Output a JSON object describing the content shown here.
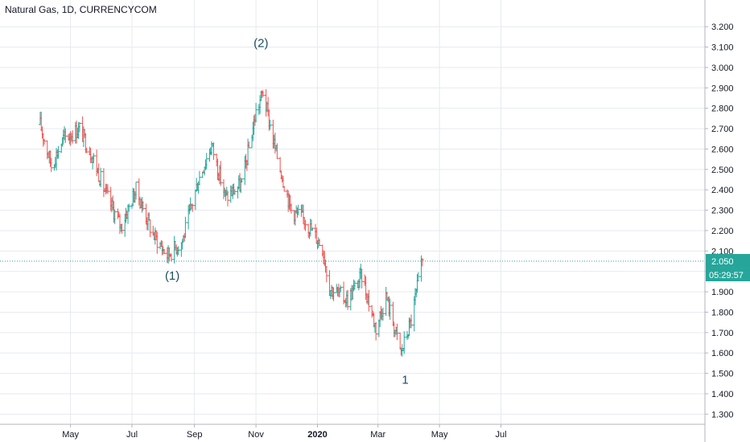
{
  "header": {
    "symbol_title": "Natural Gas, 1D, CURRENCYCOM"
  },
  "colors": {
    "up": "#26a69a",
    "down": "#ef5350",
    "grid": "#e6eaf0",
    "axis_text": "#131722",
    "price_line": "#26a69a",
    "wave_label": "#1e4e5e"
  },
  "chart_data": {
    "type": "ohlc-bar",
    "timeframe": "1D",
    "x_tick_labels": [
      "May",
      "Jul",
      "Sep",
      "Nov",
      "2020",
      "Mar",
      "May",
      "Jul"
    ],
    "y_tick_labels": [
      "1.300",
      "1.400",
      "1.500",
      "1.600",
      "1.700",
      "1.800",
      "1.900",
      "2.000",
      "2.100",
      "2.200",
      "2.300",
      "2.400",
      "2.500",
      "2.600",
      "2.700",
      "2.800",
      "2.900",
      "3.000",
      "3.100",
      "3.200"
    ],
    "ylim": [
      1.25,
      3.26
    ],
    "grid": true,
    "last_price": {
      "value": 2.05,
      "label": "2.050",
      "countdown": "05:29:57"
    },
    "wave_labels": [
      {
        "text": "(1)",
        "date": "2019-08-10",
        "price": 1.96
      },
      {
        "text": "(2)",
        "date": "2019-11-06",
        "price": 3.1
      },
      {
        "text": "1",
        "date": "2020-03-28",
        "price": 1.45
      }
    ],
    "anchors": [
      [
        "2019-04-01",
        2.72
      ],
      [
        "2019-04-12",
        2.52
      ],
      [
        "2019-04-24",
        2.65
      ],
      [
        "2019-05-10",
        2.7
      ],
      [
        "2019-05-24",
        2.55
      ],
      [
        "2019-06-05",
        2.38
      ],
      [
        "2019-06-20",
        2.22
      ],
      [
        "2019-07-05",
        2.4
      ],
      [
        "2019-07-22",
        2.18
      ],
      [
        "2019-08-05",
        2.08
      ],
      [
        "2019-08-20",
        2.15
      ],
      [
        "2019-09-05",
        2.45
      ],
      [
        "2019-09-18",
        2.62
      ],
      [
        "2019-10-02",
        2.36
      ],
      [
        "2019-10-18",
        2.43
      ],
      [
        "2019-11-01",
        2.78
      ],
      [
        "2019-11-08",
        2.88
      ],
      [
        "2019-11-20",
        2.6
      ],
      [
        "2019-12-06",
        2.3
      ],
      [
        "2019-12-20",
        2.25
      ],
      [
        "2020-01-06",
        2.12
      ],
      [
        "2020-01-13",
        1.92
      ],
      [
        "2020-01-31",
        1.86
      ],
      [
        "2020-02-14",
        1.98
      ],
      [
        "2020-02-28",
        1.72
      ],
      [
        "2020-03-09",
        1.88
      ],
      [
        "2020-03-24",
        1.6
      ],
      [
        "2020-04-03",
        1.76
      ],
      [
        "2020-04-14",
        2.05
      ]
    ]
  }
}
